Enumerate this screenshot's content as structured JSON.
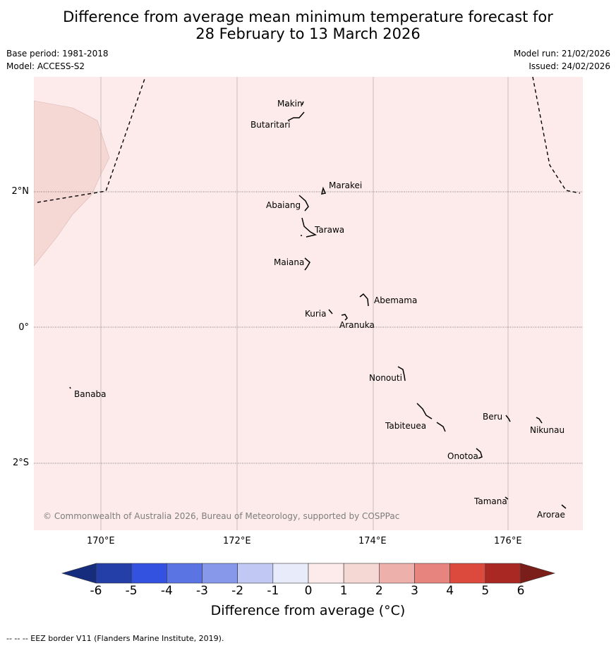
{
  "title_line1": "Difference from average mean minimum temperature forecast for",
  "title_line2": "28 February to 13 March 2026",
  "base_period": "Base period: 1981-2018",
  "model": "Model: ACCESS-S2",
  "model_run": "Model run: 21/02/2026",
  "issued": "Issued: 24/02/2026",
  "copyright": "© Commonwealth of Australia 2026, Bureau of Meteorology, supported by COSPPac",
  "lon_labels": [
    "170°E",
    "172°E",
    "174°E",
    "176°E"
  ],
  "lat_labels": [
    "2°N",
    "0°",
    "2°S"
  ],
  "places": {
    "makin": "Makin",
    "butaritari": "Butaritari",
    "marakei": "Marakei",
    "abaiang": "Abaiang",
    "tarawa": "Tarawa",
    "maiana": "Maiana",
    "abemama": "Abemama",
    "kuria": "Kuria",
    "aranuka": "Aranuka",
    "nonouti": "Nonouti",
    "banaba": "Banaba",
    "tabiteuea": "Tabiteuea",
    "beru": "Beru",
    "nikunau": "Nikunau",
    "onotoa": "Onotoa",
    "tamana": "Tamana",
    "arorae": "Arorae"
  },
  "colorbar": {
    "ticks": [
      "-6",
      "-5",
      "-4",
      "-3",
      "-2",
      "-1",
      "0",
      "1",
      "2",
      "3",
      "4",
      "5",
      "6"
    ],
    "colors": [
      "#243fa8",
      "#3352e0",
      "#5a74e3",
      "#8798eb",
      "#c0c8f3",
      "#e8ebfa",
      "#fcebea",
      "#f5d7d4",
      "#eeb0ab",
      "#e8847e",
      "#dc4a3e",
      "#aa2823"
    ],
    "under_color": "#162c7c",
    "over_color": "#7b1e19",
    "label": "Difference from average (°C)"
  },
  "map_colors": {
    "background": "#fcebea",
    "warmer_region": "#f5d7d4"
  },
  "eez_note": "--  --  -- EEZ border V11 (Flanders Marine Institute, 2019)."
}
